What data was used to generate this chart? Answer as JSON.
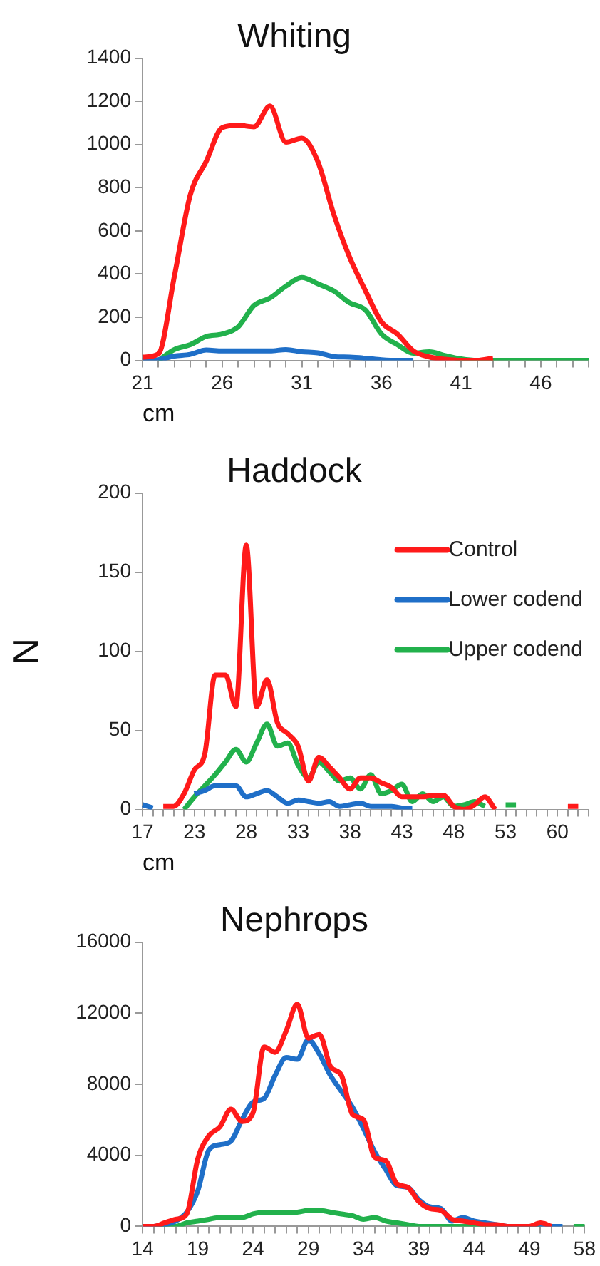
{
  "chart_data": [
    {
      "type": "line",
      "title": "Whiting",
      "xlabel": "cm",
      "marker": "none",
      "line_style": "solid",
      "grid": false,
      "legend": false,
      "categories": [
        "21",
        null,
        null,
        null,
        null,
        "26",
        null,
        null,
        null,
        null,
        "31",
        null,
        null,
        null,
        null,
        "36",
        null,
        null,
        null,
        null,
        "41",
        null,
        null,
        null,
        null,
        "46",
        null,
        null,
        null
      ],
      "ylim": [
        0,
        1400
      ],
      "yticks": [
        0,
        200,
        400,
        600,
        800,
        1000,
        1200,
        1400
      ],
      "series": [
        {
          "color": "#ff1a1a",
          "values": [
            15,
            30,
            390,
            767,
            922,
            1078,
            1089,
            1082,
            1178,
            1011,
            1029,
            922,
            678,
            478,
            322,
            178,
            122,
            44,
            16,
            5,
            0,
            0,
            10,
            null,
            null,
            null,
            null,
            null,
            null
          ]
        },
        {
          "color": "#1f6fc8",
          "values": [
            0,
            3,
            20,
            28,
            48,
            44,
            44,
            44,
            44,
            50,
            40,
            35,
            18,
            15,
            10,
            3,
            0,
            0,
            null,
            null,
            null,
            null,
            null,
            null,
            null,
            null,
            null,
            null,
            null
          ]
        },
        {
          "color": "#22b14c",
          "values": [
            null,
            0,
            50,
            73,
            111,
            122,
            155,
            255,
            289,
            344,
            384,
            355,
            322,
            267,
            233,
            122,
            73,
            33,
            40,
            22,
            7,
            0,
            0,
            0,
            0,
            0,
            0,
            0,
            0
          ]
        }
      ]
    },
    {
      "type": "line",
      "title": "Haddock",
      "xlabel": "cm",
      "ylabel": "N",
      "marker": "none",
      "line_style": "solid",
      "grid": false,
      "legend": "top right",
      "categories": [
        "17",
        null,
        null,
        null,
        null,
        "23",
        null,
        null,
        null,
        null,
        "28",
        null,
        null,
        null,
        null,
        "33",
        null,
        null,
        null,
        null,
        "38",
        null,
        null,
        null,
        null,
        "43",
        null,
        null,
        null,
        null,
        "48",
        null,
        null,
        null,
        null,
        "53",
        null,
        null,
        null,
        null,
        "60",
        null,
        null,
        null
      ],
      "ylim": [
        0,
        200
      ],
      "yticks": [
        0,
        50,
        100,
        150,
        200
      ],
      "series": [
        {
          "name": "Control",
          "color": "#ff1a1a",
          "values": [
            null,
            null,
            2,
            2,
            10,
            25,
            35,
            85,
            85,
            65,
            167,
            65,
            82,
            55,
            48,
            40,
            18,
            33,
            27,
            20,
            13,
            20,
            20,
            17,
            14,
            8,
            8,
            8,
            9,
            9,
            2,
            0,
            3,
            8,
            0,
            null,
            null,
            null,
            null,
            null,
            null,
            2,
            2,
            null
          ]
        },
        {
          "name": "Lower codend",
          "color": "#1f6fc8",
          "values": [
            3,
            1,
            null,
            null,
            null,
            10,
            12,
            15,
            15,
            15,
            8,
            10,
            12,
            8,
            4,
            6,
            5,
            4,
            5,
            2,
            3,
            4,
            2,
            2,
            2,
            1,
            1,
            null,
            null,
            null,
            null,
            null,
            null,
            null,
            null,
            null,
            null,
            null,
            null,
            null,
            null,
            null,
            null,
            null
          ]
        },
        {
          "name": "Upper codend",
          "color": "#22b14c",
          "values": [
            null,
            null,
            null,
            null,
            0,
            8,
            15,
            22,
            30,
            38,
            30,
            42,
            54,
            40,
            42,
            28,
            20,
            30,
            24,
            18,
            20,
            13,
            22,
            10,
            12,
            16,
            5,
            10,
            5,
            8,
            2,
            3,
            5,
            2,
            null,
            3,
            3,
            null,
            null,
            null,
            null,
            null,
            null,
            null
          ]
        }
      ]
    },
    {
      "type": "line",
      "title": "Nephrops",
      "marker": "none",
      "line_style": "solid",
      "grid": false,
      "legend": false,
      "categories": [
        "14",
        null,
        null,
        null,
        null,
        "19",
        null,
        null,
        null,
        null,
        "24",
        null,
        null,
        null,
        null,
        "29",
        null,
        null,
        null,
        null,
        "34",
        null,
        null,
        null,
        null,
        "39",
        null,
        null,
        null,
        null,
        "44",
        null,
        null,
        null,
        null,
        "49",
        null,
        null,
        null,
        null,
        "58"
      ],
      "ylim": [
        0,
        16000
      ],
      "yticks": [
        0,
        4000,
        8000,
        12000,
        16000
      ],
      "series": [
        {
          "color": "#ff1a1a",
          "values": [
            0,
            0,
            200,
            400,
            700,
            3800,
            5100,
            5600,
            6600,
            5900,
            6400,
            10100,
            9800,
            11000,
            12500,
            10600,
            10800,
            9000,
            8500,
            6300,
            6000,
            3900,
            3700,
            2400,
            2200,
            1400,
            1000,
            900,
            400,
            300,
            200,
            100,
            100,
            0,
            0,
            0,
            200,
            0,
            null,
            null,
            null
          ]
        },
        {
          "color": "#1f6fc8",
          "values": [
            0,
            0,
            100,
            300,
            800,
            2000,
            4300,
            4600,
            4800,
            6000,
            7000,
            7200,
            8500,
            9500,
            9400,
            10500,
            9700,
            8500,
            7600,
            6700,
            5500,
            4200,
            3200,
            2300,
            2200,
            1500,
            1100,
            1000,
            300,
            500,
            300,
            200,
            100,
            0,
            0,
            0,
            0,
            0,
            0,
            null,
            null
          ]
        },
        {
          "color": "#22b14c",
          "values": [
            null,
            0,
            0,
            0,
            200,
            300,
            400,
            500,
            500,
            500,
            700,
            800,
            800,
            800,
            800,
            900,
            900,
            800,
            700,
            600,
            400,
            500,
            300,
            200,
            100,
            0,
            0,
            0,
            0,
            0,
            0,
            0,
            0,
            0,
            0,
            0,
            0,
            null,
            null,
            0,
            0
          ]
        }
      ]
    }
  ]
}
